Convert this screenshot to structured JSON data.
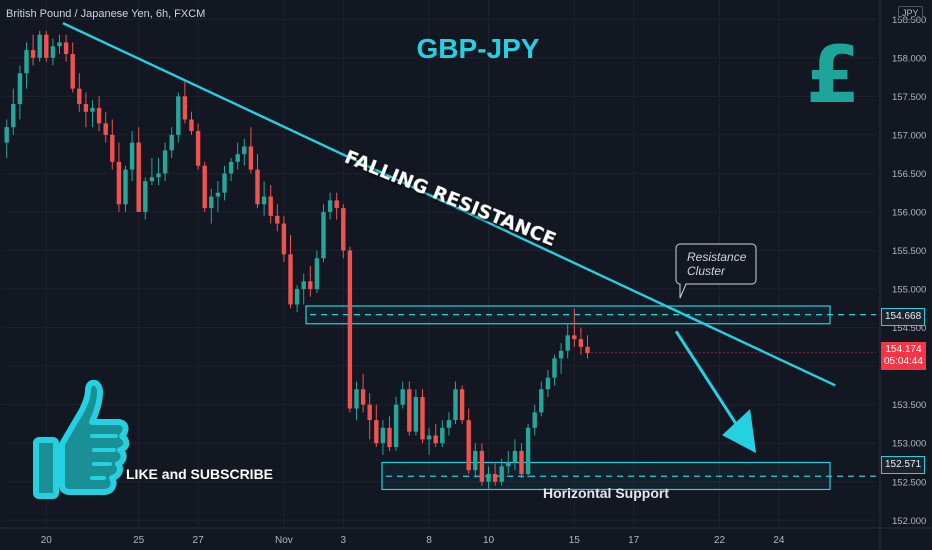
{
  "header": {
    "symbol_line": "British Pound / Japanese Yen, 6h, FXCM",
    "currency_badge": "JPY"
  },
  "annotations": {
    "title": "GBP-JPY",
    "falling_resistance": "FALLING RESISTANCE",
    "resistance_cluster_line1": "Resistance",
    "resistance_cluster_line2": "Cluster",
    "horizontal_support": "Horizontal Support",
    "like_subscribe": "LIKE and SUBSCRIBE",
    "pound_symbol": "£"
  },
  "price_tags": {
    "resistance": "154.668",
    "support": "152.571",
    "last_price": "154.174",
    "countdown": "05:04:44"
  },
  "colors": {
    "background": "#131722",
    "bull": "#26a69a",
    "bear": "#ef5350",
    "accent": "#25d0e0",
    "pound": "#1ea59b",
    "last_price": "#f23645"
  },
  "chart_data": {
    "type": "candlestick",
    "timeframe": "6h",
    "ylim": [
      151.9,
      158.75
    ],
    "y_ticks": [
      "152.000",
      "152.500",
      "153.000",
      "153.500",
      "154.000",
      "154.500",
      "155.000",
      "155.500",
      "156.000",
      "156.500",
      "157.000",
      "157.500",
      "158.000",
      "158.500"
    ],
    "x_ticks": [
      {
        "label": "20",
        "idx": 6
      },
      {
        "label": "25",
        "idx": 20
      },
      {
        "label": "27",
        "idx": 29
      },
      {
        "label": "Nov",
        "idx": 42
      },
      {
        "label": "3",
        "idx": 51
      },
      {
        "label": "8",
        "idx": 64
      },
      {
        "label": "10",
        "idx": 73
      },
      {
        "label": "15",
        "idx": 86
      },
      {
        "label": "17",
        "idx": 95
      },
      {
        "label": "22",
        "idx": 108
      },
      {
        "label": "24",
        "idx": 117
      }
    ],
    "resistance_zone": [
      154.55,
      154.78
    ],
    "resistance_level": 154.668,
    "support_zone": [
      152.4,
      152.75
    ],
    "support_level": 152.571,
    "falling_resistance_line": {
      "from": [
        7,
        158.45
      ],
      "to": [
        121,
        153.75
      ]
    },
    "projection_arrow": {
      "from": [
        99,
        154.4
      ],
      "to": [
        109,
        152.95
      ]
    },
    "last_price": 154.174,
    "candles": [
      [
        156.9,
        157.2,
        156.7,
        157.1
      ],
      [
        157.1,
        157.6,
        157.0,
        157.4
      ],
      [
        157.4,
        157.9,
        157.2,
        157.8
      ],
      [
        157.8,
        158.2,
        157.6,
        158.1
      ],
      [
        158.1,
        158.3,
        157.9,
        158.0
      ],
      [
        158.0,
        158.35,
        157.95,
        158.3
      ],
      [
        158.3,
        158.35,
        157.95,
        158.0
      ],
      [
        158.0,
        158.25,
        157.9,
        158.15
      ],
      [
        158.15,
        158.3,
        158.05,
        158.2
      ],
      [
        158.2,
        158.3,
        157.95,
        158.05
      ],
      [
        158.05,
        158.2,
        157.55,
        157.6
      ],
      [
        157.6,
        157.8,
        157.3,
        157.4
      ],
      [
        157.4,
        157.55,
        157.1,
        157.3
      ],
      [
        157.3,
        157.45,
        157.1,
        157.35
      ],
      [
        157.35,
        157.5,
        157.05,
        157.15
      ],
      [
        157.15,
        157.3,
        156.9,
        157.0
      ],
      [
        157.0,
        157.2,
        156.55,
        156.65
      ],
      [
        156.65,
        156.9,
        156.0,
        156.1
      ],
      [
        156.1,
        156.6,
        156.0,
        156.55
      ],
      [
        156.55,
        157.05,
        156.4,
        156.9
      ],
      [
        156.9,
        157.1,
        156.0,
        156.0
      ],
      [
        156.0,
        156.45,
        155.9,
        156.4
      ],
      [
        156.4,
        156.7,
        156.35,
        156.45
      ],
      [
        156.45,
        156.7,
        156.35,
        156.5
      ],
      [
        156.5,
        156.9,
        156.4,
        156.8
      ],
      [
        156.8,
        157.1,
        156.7,
        157.0
      ],
      [
        157.0,
        157.55,
        156.9,
        157.5
      ],
      [
        157.5,
        157.7,
        157.15,
        157.2
      ],
      [
        157.2,
        157.3,
        157.0,
        157.05
      ],
      [
        157.05,
        157.15,
        156.55,
        156.6
      ],
      [
        156.6,
        156.65,
        156.0,
        156.05
      ],
      [
        156.05,
        156.3,
        155.85,
        156.2
      ],
      [
        156.2,
        156.4,
        156.0,
        156.25
      ],
      [
        156.25,
        156.6,
        156.15,
        156.5
      ],
      [
        156.5,
        156.7,
        156.4,
        156.65
      ],
      [
        156.65,
        156.9,
        156.55,
        156.75
      ],
      [
        156.75,
        156.95,
        156.6,
        156.85
      ],
      [
        156.85,
        157.1,
        156.5,
        156.55
      ],
      [
        156.55,
        156.75,
        156.05,
        156.1
      ],
      [
        156.1,
        156.4,
        155.95,
        156.2
      ],
      [
        156.2,
        156.35,
        155.85,
        155.95
      ],
      [
        155.95,
        156.1,
        155.75,
        155.85
      ],
      [
        155.85,
        155.95,
        155.35,
        155.45
      ],
      [
        155.45,
        155.7,
        154.75,
        154.8
      ],
      [
        154.8,
        155.05,
        154.7,
        155.0
      ],
      [
        155.0,
        155.2,
        154.8,
        155.1
      ],
      [
        155.1,
        155.3,
        154.9,
        155.0
      ],
      [
        155.0,
        155.5,
        154.95,
        155.4
      ],
      [
        155.4,
        156.1,
        155.35,
        156.0
      ],
      [
        156.0,
        156.25,
        155.9,
        156.15
      ],
      [
        156.15,
        156.25,
        155.9,
        156.05
      ],
      [
        156.05,
        156.1,
        155.4,
        155.5
      ],
      [
        155.5,
        155.55,
        153.4,
        153.45
      ],
      [
        153.45,
        153.8,
        153.3,
        153.7
      ],
      [
        153.7,
        153.9,
        153.4,
        153.5
      ],
      [
        153.5,
        153.65,
        153.05,
        153.3
      ],
      [
        153.3,
        153.5,
        152.95,
        153.0
      ],
      [
        153.0,
        153.3,
        152.85,
        153.2
      ],
      [
        153.2,
        153.35,
        152.9,
        152.95
      ],
      [
        152.95,
        153.6,
        152.9,
        153.5
      ],
      [
        153.5,
        153.8,
        153.45,
        153.7
      ],
      [
        153.7,
        153.8,
        153.1,
        153.15
      ],
      [
        153.15,
        153.7,
        153.1,
        153.6
      ],
      [
        153.6,
        153.7,
        153.0,
        153.05
      ],
      [
        153.05,
        153.2,
        152.85,
        153.1
      ],
      [
        153.1,
        153.25,
        152.95,
        153.0
      ],
      [
        153.0,
        153.3,
        152.95,
        153.2
      ],
      [
        153.2,
        153.4,
        153.1,
        153.3
      ],
      [
        153.3,
        153.8,
        153.25,
        153.7
      ],
      [
        153.7,
        153.75,
        153.25,
        153.3
      ],
      [
        153.3,
        153.45,
        152.6,
        152.65
      ],
      [
        152.65,
        153.0,
        152.55,
        152.9
      ],
      [
        152.9,
        153.0,
        152.45,
        152.5
      ],
      [
        152.5,
        152.7,
        152.4,
        152.6
      ],
      [
        152.6,
        152.75,
        152.45,
        152.5
      ],
      [
        152.5,
        152.8,
        152.45,
        152.7
      ],
      [
        152.7,
        152.9,
        152.6,
        152.75
      ],
      [
        152.75,
        153.05,
        152.65,
        152.9
      ],
      [
        152.9,
        153.0,
        152.55,
        152.6
      ],
      [
        152.6,
        153.25,
        152.55,
        153.2
      ],
      [
        153.2,
        153.5,
        153.1,
        153.4
      ],
      [
        153.4,
        153.8,
        153.35,
        153.7
      ],
      [
        153.7,
        153.95,
        153.6,
        153.85
      ],
      [
        153.85,
        154.15,
        153.75,
        154.1
      ],
      [
        154.1,
        154.3,
        153.9,
        154.2
      ],
      [
        154.2,
        154.55,
        154.1,
        154.4
      ],
      [
        154.4,
        154.75,
        154.25,
        154.35
      ],
      [
        154.35,
        154.5,
        154.15,
        154.25
      ],
      [
        154.25,
        154.4,
        154.1,
        154.17
      ]
    ]
  }
}
